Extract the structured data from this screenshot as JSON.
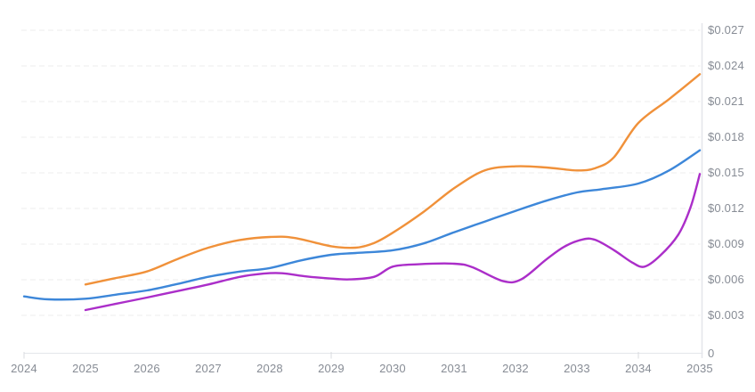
{
  "chart": {
    "background_color": "#ffffff",
    "grid_color": "#ededed",
    "axis_line_color": "#e4e6ea",
    "tick_mark_color": "#d8dbdf",
    "label_color": "#878c95",
    "plot": {
      "x_start_year": 2024,
      "x_end_year": 2035,
      "y_min": 0,
      "y_max": 0.027
    }
  },
  "chart_data": {
    "type": "line",
    "title": "",
    "xlabel": "",
    "ylabel": "",
    "legend": "none",
    "grid": "horizontal-dashed",
    "xlim": [
      2024,
      2035
    ],
    "ylim": [
      0,
      0.0285
    ],
    "x_ticks": [
      2024,
      2025,
      2026,
      2027,
      2028,
      2029,
      2030,
      2031,
      2032,
      2033,
      2034,
      2035
    ],
    "x_tick_labels": [
      "2024",
      "2025",
      "2026",
      "2027",
      "2028",
      "2029",
      "2030",
      "2031",
      "2032",
      "2033",
      "2034",
      "2035"
    ],
    "x_tick_marks_at": [
      2024,
      2029,
      2034
    ],
    "y_ticks": [
      0,
      0.003,
      0.006,
      0.009,
      0.012,
      0.015,
      0.018,
      0.021,
      0.024,
      0.027
    ],
    "y_tick_labels": [
      "0",
      "$0.003",
      "$0.006",
      "$0.009",
      "$0.012",
      "$0.015",
      "$0.018",
      "$0.021",
      "$0.024",
      "$0.027"
    ],
    "y_axis_side": "right",
    "series": [
      {
        "name": "orange-forecast-line",
        "color": "#f0913a",
        "points": [
          [
            2025,
            0.0056
          ],
          [
            2025.5,
            0.00615
          ],
          [
            2026,
            0.0067
          ],
          [
            2026.5,
            0.00775
          ],
          [
            2027,
            0.0087
          ],
          [
            2027.5,
            0.00933
          ],
          [
            2028,
            0.0096
          ],
          [
            2028.4,
            0.00952
          ],
          [
            2029,
            0.00882
          ],
          [
            2029.4,
            0.0087
          ],
          [
            2029.7,
            0.0091
          ],
          [
            2030,
            0.00995
          ],
          [
            2030.5,
            0.0117
          ],
          [
            2031,
            0.0137
          ],
          [
            2031.5,
            0.0152
          ],
          [
            2032,
            0.01555
          ],
          [
            2032.5,
            0.01545
          ],
          [
            2033,
            0.0152
          ],
          [
            2033.3,
            0.0154
          ],
          [
            2033.6,
            0.0163
          ],
          [
            2034,
            0.0192
          ],
          [
            2034.5,
            0.0212
          ],
          [
            2035,
            0.0233
          ]
        ]
      },
      {
        "name": "blue-forecast-line",
        "color": "#3d87d9",
        "points": [
          [
            2024,
            0.0046
          ],
          [
            2024.4,
            0.00435
          ],
          [
            2025,
            0.0044
          ],
          [
            2025.5,
            0.00475
          ],
          [
            2026,
            0.0051
          ],
          [
            2026.5,
            0.00565
          ],
          [
            2027,
            0.00625
          ],
          [
            2027.5,
            0.00668
          ],
          [
            2028,
            0.00698
          ],
          [
            2028.5,
            0.00762
          ],
          [
            2029,
            0.0081
          ],
          [
            2029.4,
            0.00825
          ],
          [
            2030,
            0.00848
          ],
          [
            2030.5,
            0.00905
          ],
          [
            2031,
            0.01
          ],
          [
            2031.5,
            0.0109
          ],
          [
            2032,
            0.0118
          ],
          [
            2032.5,
            0.01265
          ],
          [
            2033,
            0.01335
          ],
          [
            2033.4,
            0.01362
          ],
          [
            2034,
            0.0141
          ],
          [
            2034.5,
            0.0152
          ],
          [
            2035,
            0.0169
          ]
        ]
      },
      {
        "name": "magenta-forecast-line",
        "color": "#ab2ec9",
        "points": [
          [
            2025,
            0.00345
          ],
          [
            2025.5,
            0.00398
          ],
          [
            2026,
            0.0045
          ],
          [
            2026.5,
            0.00505
          ],
          [
            2027,
            0.0056
          ],
          [
            2027.5,
            0.00623
          ],
          [
            2027.9,
            0.00652
          ],
          [
            2028.2,
            0.00655
          ],
          [
            2028.6,
            0.00628
          ],
          [
            2029,
            0.0061
          ],
          [
            2029.3,
            0.00603
          ],
          [
            2029.7,
            0.00625
          ],
          [
            2030,
            0.0071
          ],
          [
            2030.4,
            0.0073
          ],
          [
            2031,
            0.00735
          ],
          [
            2031.3,
            0.00705
          ],
          [
            2031.8,
            0.00588
          ],
          [
            2032.1,
            0.00605
          ],
          [
            2032.5,
            0.0077
          ],
          [
            2032.8,
            0.0088
          ],
          [
            2033.1,
            0.0094
          ],
          [
            2033.3,
            0.00935
          ],
          [
            2033.6,
            0.0085
          ],
          [
            2033.9,
            0.00745
          ],
          [
            2034.1,
            0.0071
          ],
          [
            2034.35,
            0.008
          ],
          [
            2034.65,
            0.0098
          ],
          [
            2034.85,
            0.0121
          ],
          [
            2035,
            0.0149
          ]
        ]
      }
    ]
  }
}
